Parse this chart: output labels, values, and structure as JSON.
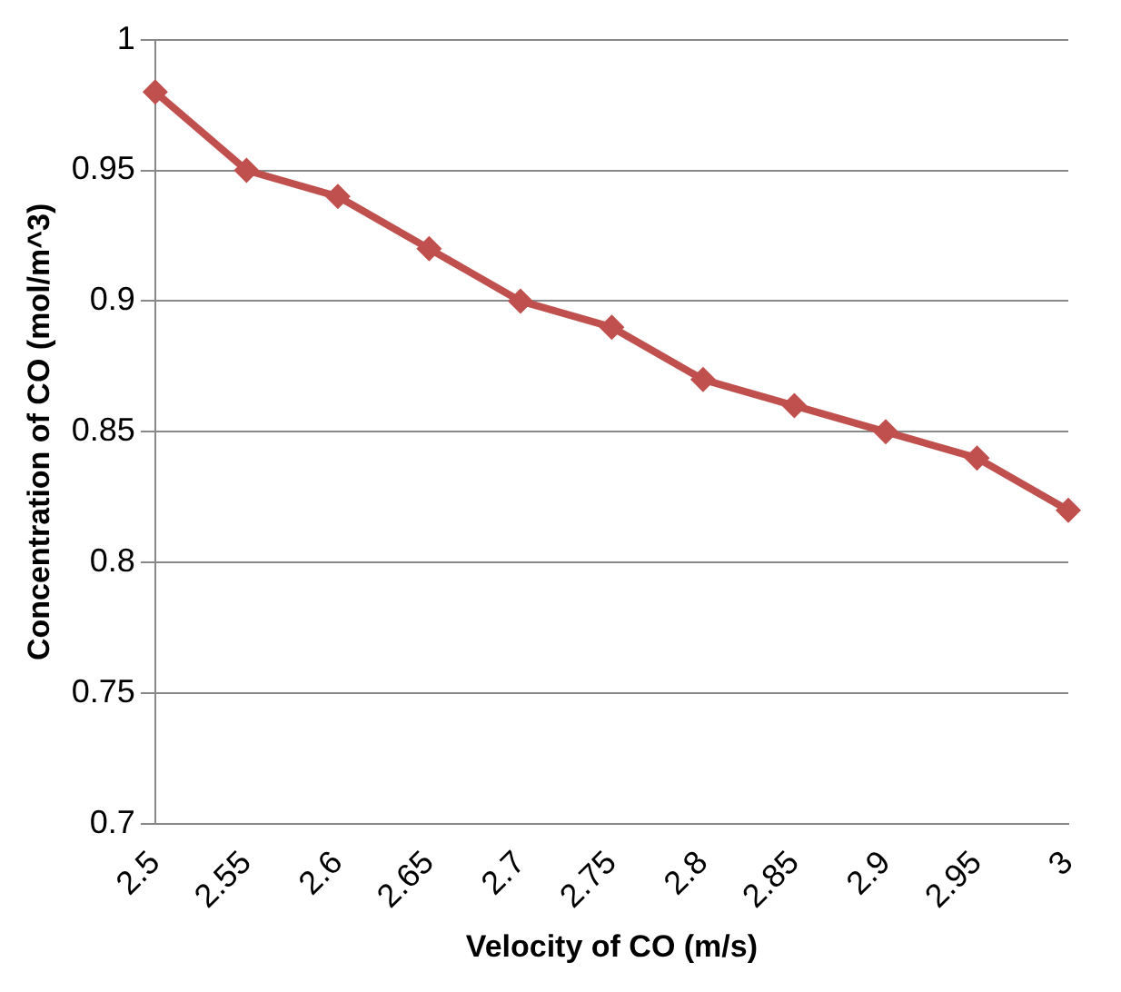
{
  "chart_data": {
    "type": "line",
    "xlabel": "Velocity of CO (m/s)",
    "ylabel": "Concentration of CO (mol/m^3)",
    "categories": [
      "2.5",
      "2.55",
      "2.6",
      "2.65",
      "2.7",
      "2.75",
      "2.8",
      "2.85",
      "2.9",
      "2.95",
      "3"
    ],
    "series": [
      {
        "color": "#c0504d",
        "values": [
          0.98,
          0.95,
          0.94,
          0.92,
          0.9,
          0.89,
          0.87,
          0.86,
          0.85,
          0.84,
          0.82
        ]
      }
    ],
    "ylim": [
      0.7,
      1
    ],
    "yticks": [
      0.7,
      0.75,
      0.8,
      0.85,
      0.9,
      0.95,
      1
    ],
    "grid": "y",
    "legend": false,
    "marker": "diamond",
    "line_style": "solid"
  }
}
